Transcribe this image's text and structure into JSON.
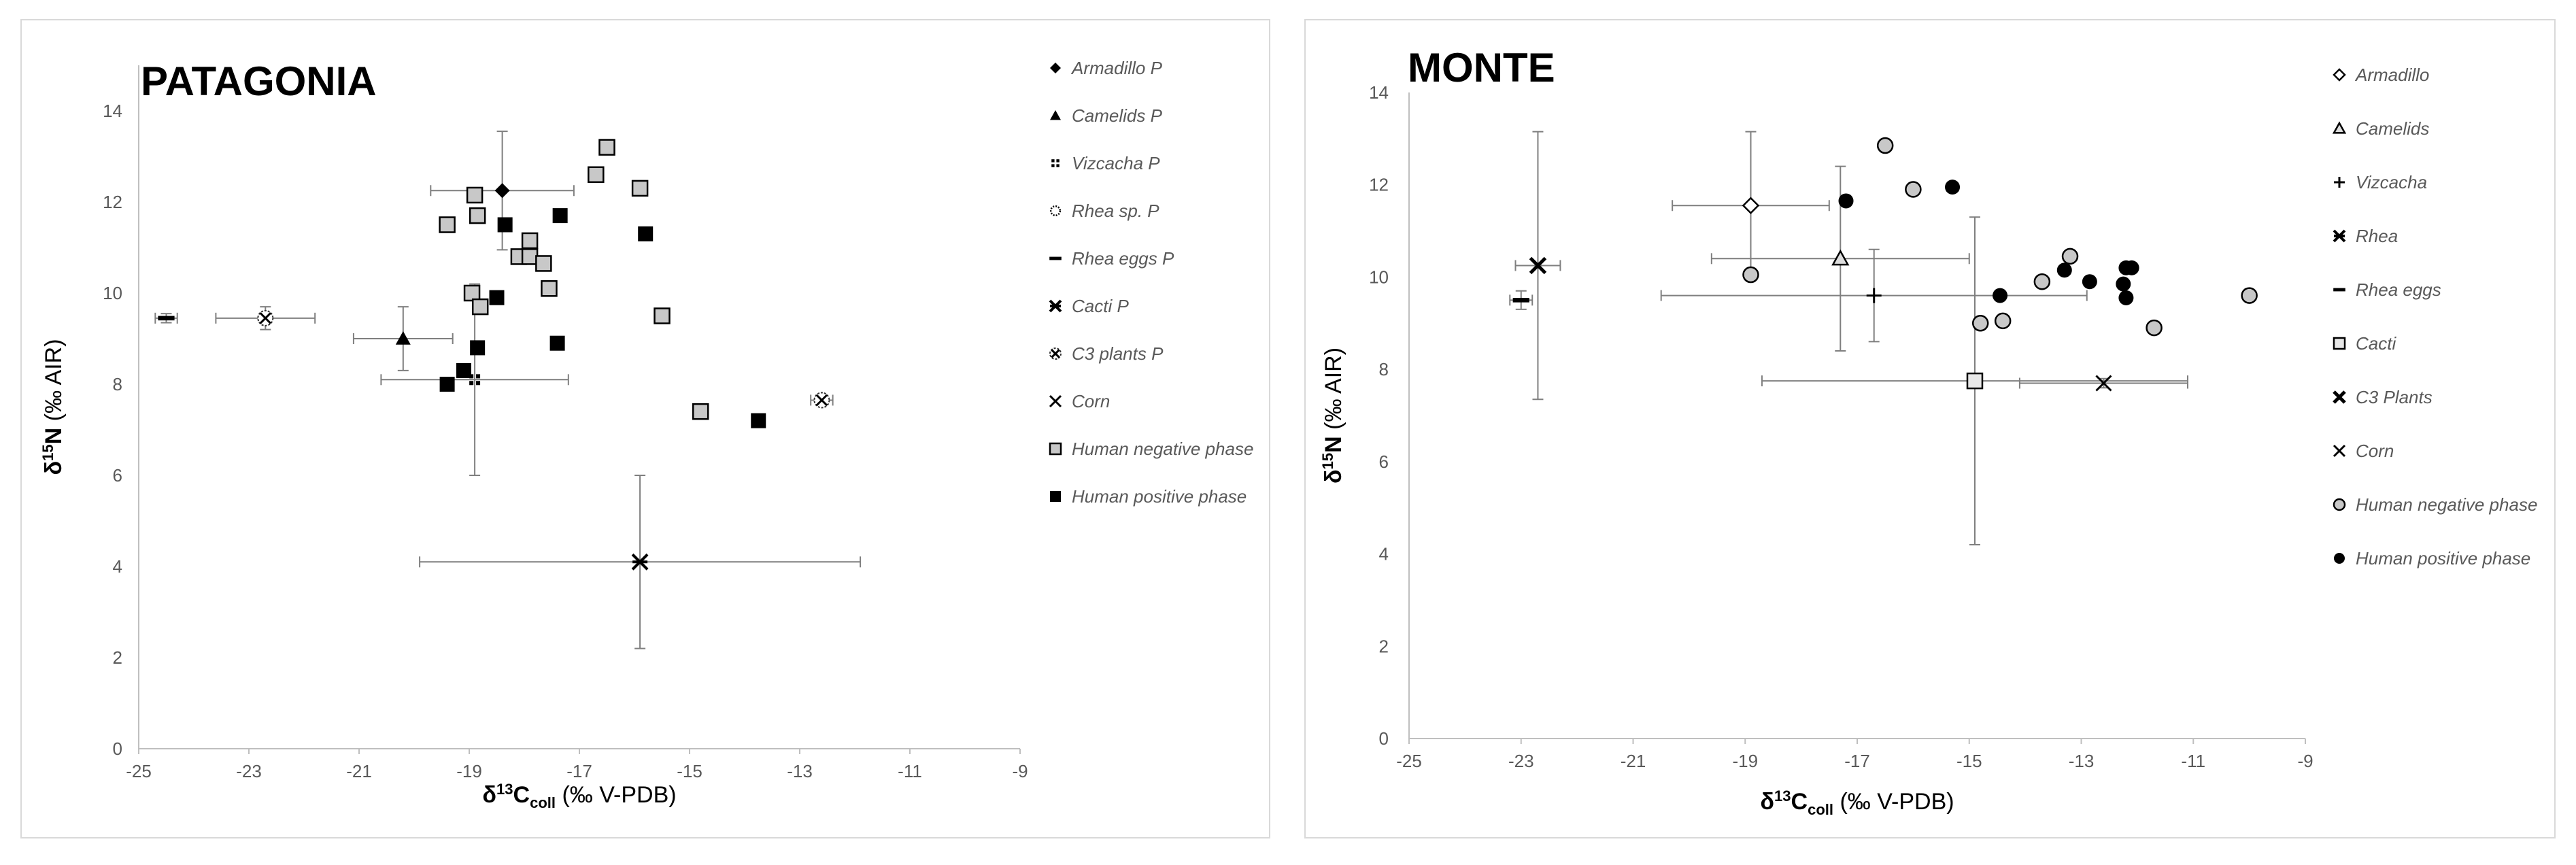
{
  "chart_data": [
    {
      "type": "scatter",
      "title": "PATAGONIA",
      "xlabel": "δ13Ccoll (‰ V-PDB)",
      "ylabel": "δ15N (‰ AIR)",
      "xlim": [
        -25,
        -9
      ],
      "ylim": [
        0,
        15
      ],
      "x_ticks": [
        -25,
        -23,
        -21,
        -19,
        -17,
        -15,
        -13,
        -11,
        -9
      ],
      "y_ticks": [
        0,
        2,
        4,
        6,
        8,
        10,
        12,
        14
      ],
      "grid": false,
      "legend_position": "right",
      "series": [
        {
          "name": "Armadillo P",
          "marker": "diamond-black",
          "points": [
            {
              "x": -18.4,
              "y": 12.25,
              "xerr": 1.3,
              "yerr": 1.3
            }
          ]
        },
        {
          "name": "Camelids P",
          "marker": "triangle-black",
          "points": [
            {
              "x": -20.2,
              "y": 9.0,
              "xerr": 0.9,
              "yerr": 0.7
            }
          ]
        },
        {
          "name": "Vizcacha P",
          "marker": "dots",
          "points": [
            {
              "x": -18.9,
              "y": 8.1,
              "xerr": 1.7,
              "yerr": 2.1
            }
          ]
        },
        {
          "name": "Rhea sp. P",
          "marker": "circle-dotted",
          "points": []
        },
        {
          "name": "Rhea eggs P",
          "marker": "dash",
          "points": [
            {
              "x": -24.5,
              "y": 9.45,
              "xerr": 0.2,
              "yerr": 0.1
            }
          ]
        },
        {
          "name": "Cacti P",
          "marker": "star",
          "points": [
            {
              "x": -15.9,
              "y": 4.1,
              "xerr": 4.0,
              "yerr": 1.9
            }
          ]
        },
        {
          "name": "C3 plants P",
          "marker": "circle-x",
          "points": [
            {
              "x": -22.7,
              "y": 9.45,
              "xerr": 0.9,
              "yerr": 0.25
            },
            {
              "x": -12.6,
              "y": 7.65,
              "xerr": 0.2,
              "yerr": 0.1
            }
          ]
        },
        {
          "name": "Corn",
          "marker": "x",
          "points": []
        },
        {
          "name": "Human negative phase",
          "marker": "square-grey",
          "points": [
            {
              "x": -16.5,
              "y": 13.2
            },
            {
              "x": -16.7,
              "y": 12.6
            },
            {
              "x": -15.9,
              "y": 12.3
            },
            {
              "x": -18.9,
              "y": 12.15
            },
            {
              "x": -18.85,
              "y": 11.7
            },
            {
              "x": -19.4,
              "y": 11.5
            },
            {
              "x": -17.9,
              "y": 11.15
            },
            {
              "x": -18.1,
              "y": 10.8
            },
            {
              "x": -17.9,
              "y": 10.8
            },
            {
              "x": -17.65,
              "y": 10.65
            },
            {
              "x": -17.55,
              "y": 10.1
            },
            {
              "x": -18.95,
              "y": 10.0
            },
            {
              "x": -18.8,
              "y": 9.7
            },
            {
              "x": -15.5,
              "y": 9.5
            },
            {
              "x": -14.8,
              "y": 7.4
            }
          ]
        },
        {
          "name": "Human positive phase",
          "marker": "square-black",
          "points": [
            {
              "x": -17.35,
              "y": 11.7
            },
            {
              "x": -18.35,
              "y": 11.5
            },
            {
              "x": -15.8,
              "y": 11.3
            },
            {
              "x": -18.5,
              "y": 9.9
            },
            {
              "x": -17.4,
              "y": 8.9
            },
            {
              "x": -18.85,
              "y": 8.8
            },
            {
              "x": -19.1,
              "y": 8.3
            },
            {
              "x": -19.4,
              "y": 8.0
            },
            {
              "x": -13.75,
              "y": 7.2
            }
          ]
        }
      ]
    },
    {
      "type": "scatter",
      "title": "MONTE",
      "xlabel": "δ13Ccoll (‰ V-PDB)",
      "ylabel": "δ15N (‰ AIR)",
      "xlim": [
        -25,
        -9
      ],
      "ylim": [
        0,
        14
      ],
      "x_ticks": [
        -25,
        -23,
        -21,
        -19,
        -17,
        -15,
        -13,
        -11,
        -9
      ],
      "y_ticks": [
        0,
        2,
        4,
        6,
        8,
        10,
        12,
        14
      ],
      "grid": false,
      "legend_position": "right",
      "series": [
        {
          "name": "Armadillo",
          "marker": "diamond-open",
          "points": [
            {
              "x": -18.9,
              "y": 11.55,
              "xerr": 1.4,
              "yerr": 1.6
            }
          ]
        },
        {
          "name": "Camelids",
          "marker": "triangle-open",
          "points": [
            {
              "x": -17.3,
              "y": 10.4,
              "xerr": 2.3,
              "yerr": 2.0
            }
          ]
        },
        {
          "name": "Vizcacha",
          "marker": "plus-box",
          "points": [
            {
              "x": -16.7,
              "y": 9.6,
              "xerr": 3.8,
              "yerr": 1.0
            }
          ]
        },
        {
          "name": "Rhea",
          "marker": "star",
          "points": []
        },
        {
          "name": "Rhea eggs",
          "marker": "dash",
          "points": [
            {
              "x": -23.0,
              "y": 9.5,
              "xerr": 0.2,
              "yerr": 0.2
            }
          ]
        },
        {
          "name": "Cacti",
          "marker": "square-open",
          "points": [
            {
              "x": -14.9,
              "y": 7.75,
              "xerr": 3.8,
              "yerr": 3.55
            }
          ]
        },
        {
          "name": "C3 Plants",
          "marker": "x-bold",
          "points": [
            {
              "x": -22.7,
              "y": 10.25,
              "xerr": 0.4,
              "yerr": 2.9
            }
          ]
        },
        {
          "name": "Corn",
          "marker": "x",
          "points": [
            {
              "x": -12.6,
              "y": 7.7,
              "xerr": 1.5,
              "yerr": 0.1
            }
          ]
        },
        {
          "name": "Human negative phase",
          "marker": "circle-grey",
          "points": [
            {
              "x": -16.5,
              "y": 12.85
            },
            {
              "x": -16.0,
              "y": 11.9
            },
            {
              "x": -18.9,
              "y": 10.05
            },
            {
              "x": -13.2,
              "y": 10.45
            },
            {
              "x": -13.7,
              "y": 9.9
            },
            {
              "x": -14.8,
              "y": 9.0
            },
            {
              "x": -14.4,
              "y": 9.05
            },
            {
              "x": -11.7,
              "y": 8.9
            },
            {
              "x": -10.0,
              "y": 9.6
            }
          ]
        },
        {
          "name": "Human positive phase",
          "marker": "circle-black",
          "points": [
            {
              "x": -15.3,
              "y": 11.95
            },
            {
              "x": -17.2,
              "y": 11.65
            },
            {
              "x": -12.1,
              "y": 10.2
            },
            {
              "x": -12.2,
              "y": 10.2
            },
            {
              "x": -13.3,
              "y": 10.15
            },
            {
              "x": -12.85,
              "y": 9.9
            },
            {
              "x": -12.25,
              "y": 9.85
            },
            {
              "x": -12.2,
              "y": 9.55
            },
            {
              "x": -14.45,
              "y": 9.6
            }
          ]
        }
      ]
    }
  ]
}
